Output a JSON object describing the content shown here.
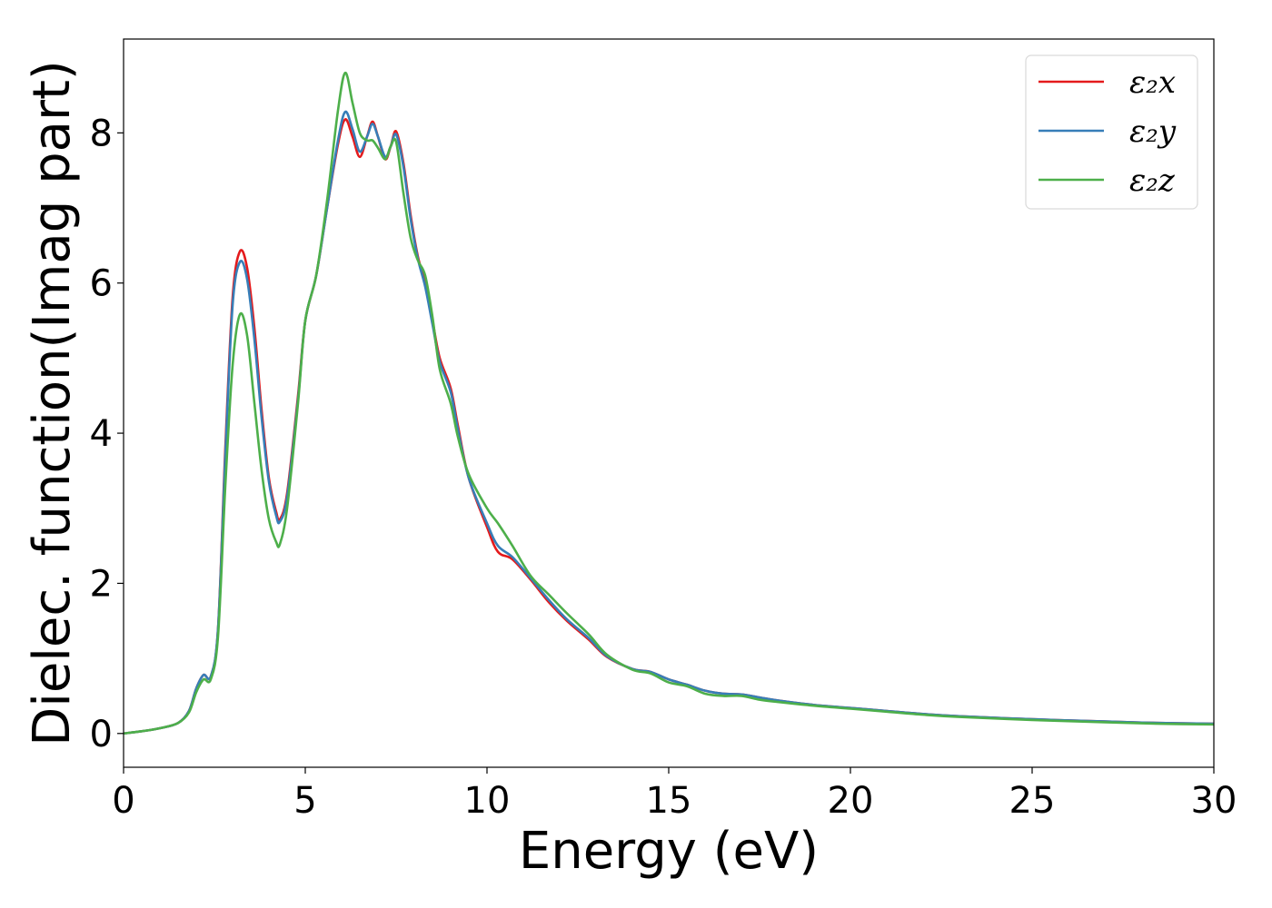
{
  "chart_data": {
    "type": "line",
    "xlabel": "Energy (eV)",
    "ylabel": "Dielec. function(Imag part)",
    "xlim": [
      0,
      30
    ],
    "ylim": [
      -0.45,
      9.25
    ],
    "xticks": [
      0,
      5,
      10,
      15,
      20,
      25,
      30
    ],
    "yticks": [
      0,
      2,
      4,
      6,
      8
    ],
    "grid": false,
    "legend_position": "top-right",
    "series": [
      {
        "name": "ε₂x",
        "color": "#e41a1c",
        "points": [
          [
            0,
            0
          ],
          [
            0.5,
            0.03
          ],
          [
            1,
            0.07
          ],
          [
            1.5,
            0.14
          ],
          [
            1.8,
            0.3
          ],
          [
            2.0,
            0.6
          ],
          [
            2.2,
            0.78
          ],
          [
            2.4,
            0.76
          ],
          [
            2.6,
            1.4
          ],
          [
            2.8,
            3.8
          ],
          [
            3.0,
            5.8
          ],
          [
            3.2,
            6.42
          ],
          [
            3.4,
            6.2
          ],
          [
            3.6,
            5.4
          ],
          [
            3.8,
            4.3
          ],
          [
            4.0,
            3.4
          ],
          [
            4.2,
            2.95
          ],
          [
            4.3,
            2.85
          ],
          [
            4.5,
            3.2
          ],
          [
            4.8,
            4.5
          ],
          [
            5.0,
            5.5
          ],
          [
            5.3,
            6.1
          ],
          [
            5.6,
            7.0
          ],
          [
            5.9,
            7.85
          ],
          [
            6.1,
            8.18
          ],
          [
            6.3,
            7.95
          ],
          [
            6.5,
            7.68
          ],
          [
            6.7,
            7.95
          ],
          [
            6.85,
            8.15
          ],
          [
            7.0,
            7.95
          ],
          [
            7.2,
            7.65
          ],
          [
            7.35,
            7.82
          ],
          [
            7.5,
            8.02
          ],
          [
            7.7,
            7.6
          ],
          [
            7.9,
            6.9
          ],
          [
            8.1,
            6.35
          ],
          [
            8.3,
            6.0
          ],
          [
            8.5,
            5.5
          ],
          [
            8.7,
            5.0
          ],
          [
            9.0,
            4.6
          ],
          [
            9.2,
            4.1
          ],
          [
            9.5,
            3.4
          ],
          [
            10.0,
            2.75
          ],
          [
            10.3,
            2.42
          ],
          [
            10.7,
            2.32
          ],
          [
            11.2,
            2.05
          ],
          [
            11.7,
            1.75
          ],
          [
            12.2,
            1.5
          ],
          [
            12.8,
            1.25
          ],
          [
            13.3,
            1.02
          ],
          [
            14.0,
            0.86
          ],
          [
            14.5,
            0.82
          ],
          [
            15.0,
            0.72
          ],
          [
            15.5,
            0.65
          ],
          [
            16.0,
            0.57
          ],
          [
            16.5,
            0.53
          ],
          [
            17.0,
            0.52
          ],
          [
            17.5,
            0.48
          ],
          [
            18.0,
            0.44
          ],
          [
            19.0,
            0.38
          ],
          [
            20.0,
            0.34
          ],
          [
            21.0,
            0.3
          ],
          [
            22.0,
            0.26
          ],
          [
            23.0,
            0.23
          ],
          [
            25.0,
            0.19
          ],
          [
            27.0,
            0.16
          ],
          [
            28.5,
            0.14
          ],
          [
            30.0,
            0.13
          ]
        ]
      },
      {
        "name": "ε₂y",
        "color": "#377eb8",
        "points": [
          [
            0,
            0
          ],
          [
            0.5,
            0.03
          ],
          [
            1,
            0.07
          ],
          [
            1.5,
            0.14
          ],
          [
            1.8,
            0.3
          ],
          [
            2.0,
            0.6
          ],
          [
            2.2,
            0.78
          ],
          [
            2.4,
            0.76
          ],
          [
            2.6,
            1.4
          ],
          [
            2.8,
            3.7
          ],
          [
            3.0,
            5.7
          ],
          [
            3.2,
            6.28
          ],
          [
            3.4,
            6.05
          ],
          [
            3.6,
            5.25
          ],
          [
            3.8,
            4.2
          ],
          [
            4.0,
            3.35
          ],
          [
            4.2,
            2.9
          ],
          [
            4.3,
            2.82
          ],
          [
            4.5,
            3.15
          ],
          [
            4.8,
            4.45
          ],
          [
            5.0,
            5.5
          ],
          [
            5.3,
            6.1
          ],
          [
            5.6,
            7.0
          ],
          [
            5.9,
            7.9
          ],
          [
            6.1,
            8.28
          ],
          [
            6.3,
            8.05
          ],
          [
            6.5,
            7.75
          ],
          [
            6.7,
            7.95
          ],
          [
            6.85,
            8.12
          ],
          [
            7.0,
            7.95
          ],
          [
            7.2,
            7.68
          ],
          [
            7.35,
            7.82
          ],
          [
            7.5,
            7.98
          ],
          [
            7.7,
            7.55
          ],
          [
            7.9,
            6.85
          ],
          [
            8.1,
            6.32
          ],
          [
            8.3,
            5.95
          ],
          [
            8.5,
            5.45
          ],
          [
            8.7,
            4.95
          ],
          [
            9.0,
            4.55
          ],
          [
            9.2,
            4.05
          ],
          [
            9.5,
            3.4
          ],
          [
            10.0,
            2.8
          ],
          [
            10.3,
            2.5
          ],
          [
            10.7,
            2.35
          ],
          [
            11.2,
            2.07
          ],
          [
            11.7,
            1.78
          ],
          [
            12.2,
            1.52
          ],
          [
            12.8,
            1.27
          ],
          [
            13.3,
            1.03
          ],
          [
            14.0,
            0.86
          ],
          [
            14.5,
            0.82
          ],
          [
            15.0,
            0.72
          ],
          [
            15.5,
            0.65
          ],
          [
            16.0,
            0.57
          ],
          [
            16.5,
            0.53
          ],
          [
            17.0,
            0.52
          ],
          [
            17.5,
            0.48
          ],
          [
            18.0,
            0.44
          ],
          [
            19.0,
            0.38
          ],
          [
            20.0,
            0.34
          ],
          [
            21.0,
            0.3
          ],
          [
            22.0,
            0.26
          ],
          [
            23.0,
            0.23
          ],
          [
            25.0,
            0.19
          ],
          [
            27.0,
            0.16
          ],
          [
            28.5,
            0.14
          ],
          [
            30.0,
            0.13
          ]
        ]
      },
      {
        "name": "ε₂z",
        "color": "#4daf4a",
        "points": [
          [
            0,
            0
          ],
          [
            0.5,
            0.03
          ],
          [
            1,
            0.07
          ],
          [
            1.5,
            0.14
          ],
          [
            1.8,
            0.28
          ],
          [
            2.0,
            0.55
          ],
          [
            2.2,
            0.72
          ],
          [
            2.4,
            0.72
          ],
          [
            2.6,
            1.3
          ],
          [
            2.8,
            3.3
          ],
          [
            3.0,
            4.9
          ],
          [
            3.2,
            5.58
          ],
          [
            3.4,
            5.3
          ],
          [
            3.6,
            4.4
          ],
          [
            3.8,
            3.5
          ],
          [
            4.0,
            2.85
          ],
          [
            4.2,
            2.55
          ],
          [
            4.3,
            2.52
          ],
          [
            4.5,
            3.0
          ],
          [
            4.8,
            4.4
          ],
          [
            5.0,
            5.5
          ],
          [
            5.3,
            6.1
          ],
          [
            5.6,
            7.1
          ],
          [
            5.9,
            8.3
          ],
          [
            6.1,
            8.8
          ],
          [
            6.3,
            8.4
          ],
          [
            6.5,
            8.0
          ],
          [
            6.7,
            7.9
          ],
          [
            6.85,
            7.9
          ],
          [
            7.0,
            7.8
          ],
          [
            7.2,
            7.65
          ],
          [
            7.35,
            7.82
          ],
          [
            7.5,
            7.88
          ],
          [
            7.7,
            7.2
          ],
          [
            7.9,
            6.6
          ],
          [
            8.1,
            6.3
          ],
          [
            8.3,
            6.1
          ],
          [
            8.5,
            5.55
          ],
          [
            8.7,
            4.85
          ],
          [
            9.0,
            4.4
          ],
          [
            9.2,
            3.95
          ],
          [
            9.5,
            3.45
          ],
          [
            10.0,
            3.0
          ],
          [
            10.3,
            2.8
          ],
          [
            10.7,
            2.5
          ],
          [
            11.2,
            2.1
          ],
          [
            11.7,
            1.85
          ],
          [
            12.2,
            1.6
          ],
          [
            12.8,
            1.32
          ],
          [
            13.3,
            1.05
          ],
          [
            14.0,
            0.85
          ],
          [
            14.5,
            0.8
          ],
          [
            15.0,
            0.68
          ],
          [
            15.5,
            0.63
          ],
          [
            16.0,
            0.53
          ],
          [
            16.5,
            0.5
          ],
          [
            17.0,
            0.5
          ],
          [
            17.5,
            0.45
          ],
          [
            18.0,
            0.42
          ],
          [
            19.0,
            0.37
          ],
          [
            20.0,
            0.33
          ],
          [
            21.0,
            0.29
          ],
          [
            22.0,
            0.25
          ],
          [
            23.0,
            0.22
          ],
          [
            25.0,
            0.18
          ],
          [
            27.0,
            0.15
          ],
          [
            28.5,
            0.13
          ],
          [
            30.0,
            0.12
          ]
        ]
      }
    ]
  }
}
